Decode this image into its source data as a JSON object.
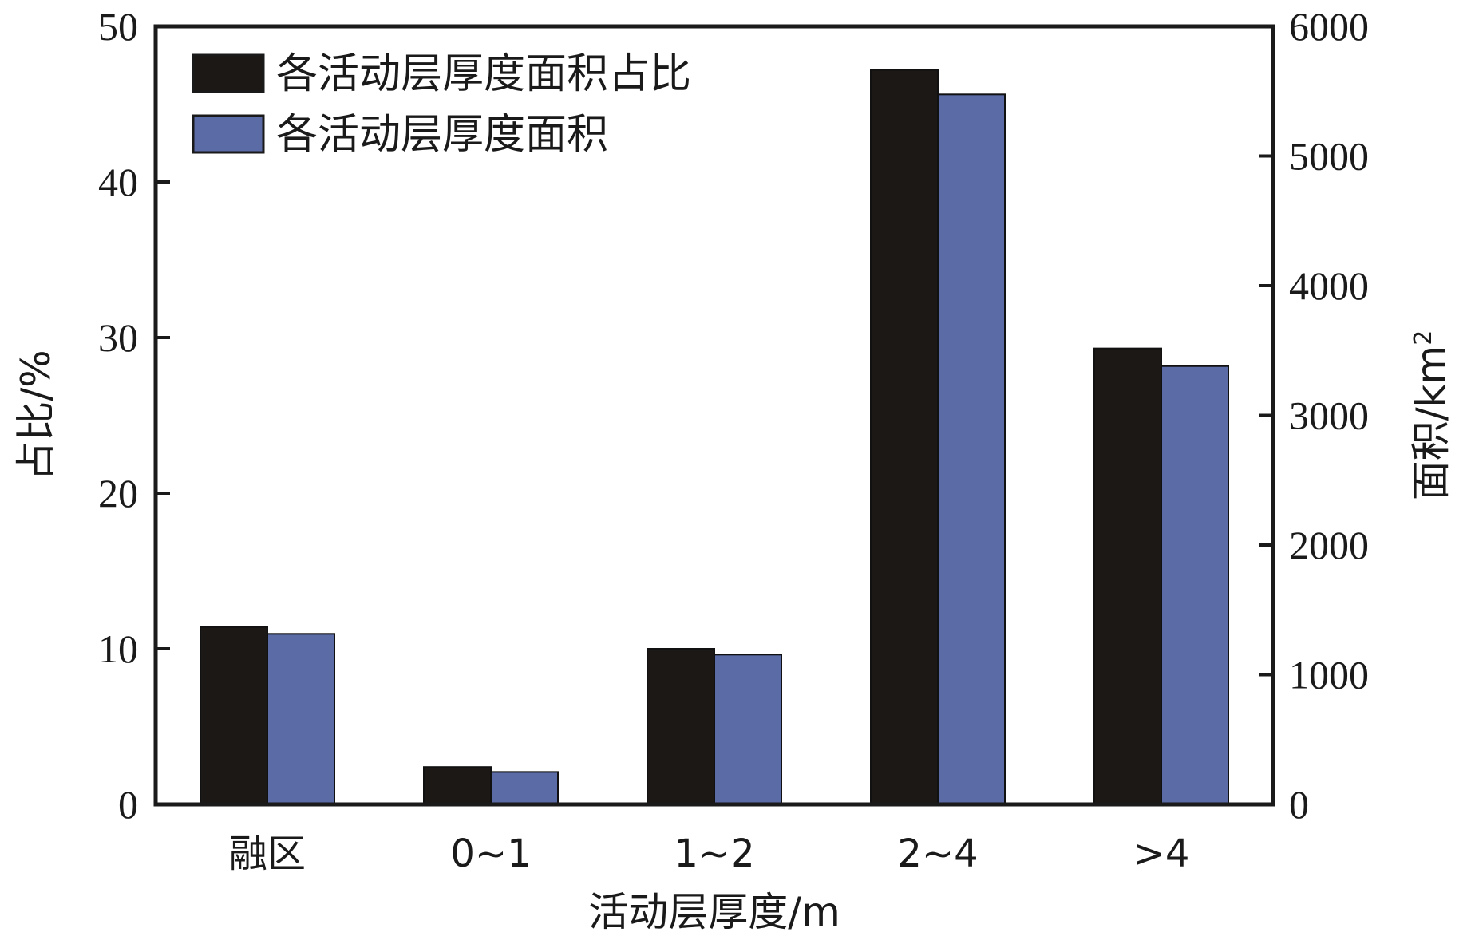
{
  "chart_data": {
    "type": "bar",
    "categories": [
      "融区",
      "0~1",
      "1~2",
      "2~4",
      ">4"
    ],
    "series": [
      {
        "name": "各活动层厚度面积占比",
        "axis": "left",
        "values": [
          11.4,
          2.4,
          10.0,
          47.2,
          29.3
        ],
        "color": "#1b1816"
      },
      {
        "name": "各活动层厚度面积",
        "axis": "right",
        "values": [
          1315,
          250,
          1155,
          5475,
          3380
        ],
        "color": "#5a6ba5"
      }
    ],
    "xlabel": "活动层厚度/m",
    "ylabel_left": "占比/%",
    "ylabel_right_main": "面积/km",
    "ylabel_right_sup": "2",
    "ylim_left": [
      0,
      50
    ],
    "yticks_left": [
      "0",
      "10",
      "20",
      "30",
      "40",
      "50"
    ],
    "ylim_right": [
      0,
      6000
    ],
    "yticks_right": [
      "0",
      "1000",
      "2000",
      "3000",
      "4000",
      "5000",
      "6000"
    ],
    "legend_position": "top-left",
    "grid": false
  }
}
